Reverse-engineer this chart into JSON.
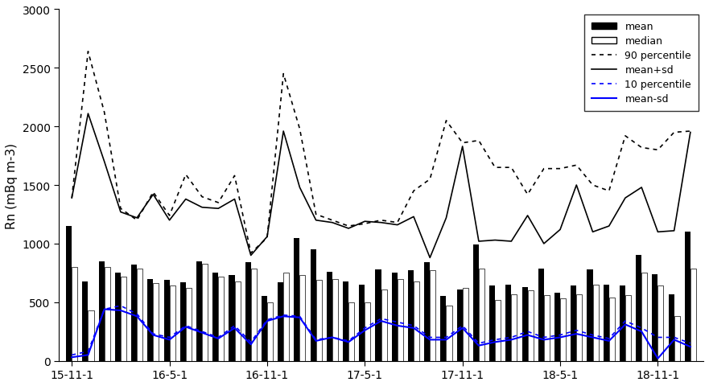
{
  "months_count": 39,
  "xtick_labels": [
    "15-11-1",
    "16-5-1",
    "16-11-1",
    "17-5-1",
    "17-11-1",
    "18-5-1",
    "18-11-1"
  ],
  "xtick_positions": [
    0,
    6,
    12,
    18,
    24,
    30,
    36
  ],
  "mean": [
    1150,
    680,
    850,
    750,
    820,
    700,
    690,
    670,
    850,
    750,
    730,
    840,
    550,
    670,
    1050,
    950,
    760,
    680,
    650,
    780,
    750,
    770,
    840,
    550,
    610,
    990,
    640,
    650,
    630,
    790,
    580,
    640,
    780,
    650,
    640,
    900,
    740,
    570,
    1100
  ],
  "median": [
    800,
    430,
    800,
    720,
    790,
    660,
    640,
    620,
    830,
    720,
    680,
    790,
    500,
    750,
    730,
    690,
    700,
    500,
    500,
    610,
    700,
    680,
    770,
    470,
    620,
    790,
    520,
    570,
    600,
    560,
    530,
    570,
    650,
    540,
    560,
    750,
    640,
    380,
    790
  ],
  "p90": [
    1390,
    2640,
    2120,
    1300,
    1200,
    1440,
    1240,
    1590,
    1400,
    1350,
    1580,
    920,
    1050,
    2450,
    1980,
    1250,
    1200,
    1150,
    1170,
    1200,
    1180,
    1450,
    1550,
    2050,
    1860,
    1880,
    1650,
    1650,
    1420,
    1640,
    1640,
    1670,
    1500,
    1450,
    1920,
    1820,
    1800,
    1950,
    1960
  ],
  "mean_plus_sd": [
    1390,
    2110,
    1700,
    1270,
    1220,
    1420,
    1200,
    1380,
    1310,
    1300,
    1380,
    900,
    1060,
    1960,
    1480,
    1200,
    1180,
    1130,
    1190,
    1180,
    1160,
    1230,
    880,
    1220,
    1830,
    1020,
    1030,
    1020,
    1240,
    1000,
    1120,
    1500,
    1100,
    1150,
    1390,
    1480,
    1100,
    1110,
    1950
  ],
  "p10": [
    50,
    80,
    440,
    470,
    400,
    230,
    200,
    300,
    250,
    200,
    300,
    160,
    350,
    390,
    380,
    180,
    200,
    170,
    280,
    360,
    330,
    300,
    200,
    200,
    300,
    150,
    180,
    200,
    250,
    200,
    220,
    260,
    220,
    190,
    340,
    280,
    200,
    200,
    150
  ],
  "mean_minus_sd": [
    30,
    50,
    440,
    430,
    380,
    220,
    180,
    290,
    240,
    190,
    280,
    140,
    340,
    380,
    370,
    170,
    200,
    160,
    260,
    340,
    300,
    280,
    180,
    180,
    280,
    130,
    160,
    180,
    220,
    180,
    200,
    230,
    200,
    170,
    310,
    250,
    20,
    180,
    120
  ],
  "ylabel": "Rn (mBq m-3)",
  "ylim": [
    0,
    3000
  ],
  "yticks": [
    0,
    500,
    1000,
    1500,
    2000,
    2500,
    3000
  ]
}
